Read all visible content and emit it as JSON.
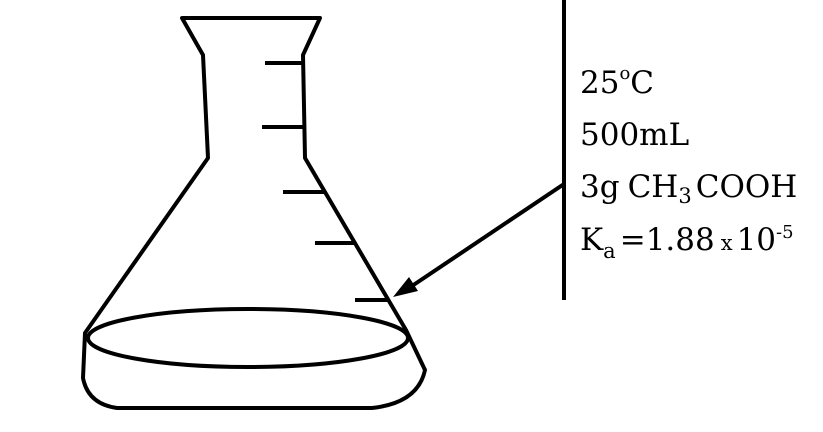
{
  "labels": {
    "temperature": {
      "value": "25",
      "degree": "o",
      "unit": "C"
    },
    "volume": "500mL",
    "solute": {
      "amount": "3g",
      "formula_pre": "CH",
      "formula_sub": "3",
      "formula_post": "COOH"
    },
    "ka": {
      "symbol": "K",
      "symbol_sub": "a",
      "equals": "=",
      "coefficient": "1.88",
      "times": "x",
      "base": "10",
      "exponent": "-5"
    }
  }
}
